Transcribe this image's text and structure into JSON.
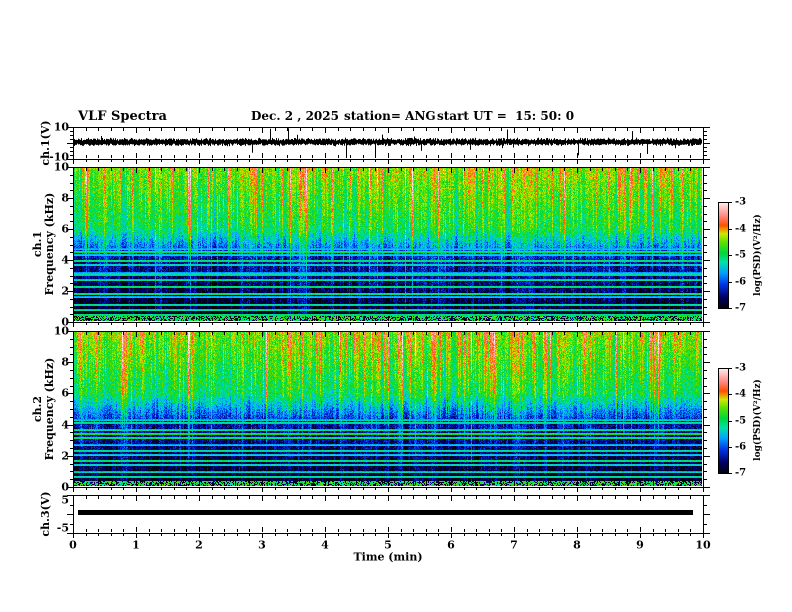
{
  "title": {
    "main": "VLF Spectra",
    "date": "Dec. 2 , 2025",
    "station": "station= ANG",
    "start_ut": "start UT =  15: 50: 0"
  },
  "left_labels": {
    "ch1_wave": "ch.1(V)",
    "spec1_line1": "ch.1",
    "spec1_line2": "Frequency (kHz)",
    "spec2_line1": "ch.2",
    "spec2_line2": "Frequency (kHz)",
    "ch3": "ch.3(V)"
  },
  "axes": {
    "ch1_wave_yticks": [
      "10",
      "-10"
    ],
    "freq_yticks": [
      "10",
      "8",
      "6",
      "4",
      "2",
      "0"
    ],
    "ch3_yticks": [
      "5",
      "-5"
    ],
    "x_ticks": [
      "0",
      "1",
      "2",
      "3",
      "4",
      "5",
      "6",
      "7",
      "8",
      "9",
      "10"
    ],
    "x_label": "Time (min)"
  },
  "colorbar": {
    "label": "log(PSD)(V²/Hz)",
    "ticks": [
      "-3",
      "-4",
      "-5",
      "-6",
      "-7"
    ]
  },
  "colors": {
    "background": "#ffffff",
    "axis": "#000000",
    "trace": "#000000",
    "colormap_stops": [
      [
        0.0,
        "#02020c"
      ],
      [
        0.1,
        "#000064"
      ],
      [
        0.22,
        "#0032e6"
      ],
      [
        0.33,
        "#00a0ff"
      ],
      [
        0.43,
        "#00e1aa"
      ],
      [
        0.52,
        "#00d73c"
      ],
      [
        0.62,
        "#5ae100"
      ],
      [
        0.7,
        "#d2e600"
      ],
      [
        0.78,
        "#ff5000"
      ],
      [
        0.86,
        "#ff8278"
      ],
      [
        1.0,
        "#fff0f0"
      ]
    ]
  },
  "chart_data": [
    {
      "type": "line",
      "name": "ch.1 time series",
      "ylabel": "ch.1(V)",
      "ylim": [
        -10,
        10
      ],
      "xlabel": "Time (min)",
      "xlim": [
        0,
        10
      ],
      "description": "dense zero-mean noise of roughly ±2 V with intermittent impulsive spikes reaching toward ±10 V across the full 10 minutes"
    },
    {
      "type": "heatmap",
      "name": "ch.1 spectrogram",
      "ylabel": "Frequency (kHz)",
      "ylim": [
        0,
        10
      ],
      "xlim": [
        0,
        10
      ],
      "value_label": "log(PSD)(V²/Hz)",
      "value_range": [
        -7,
        -3
      ],
      "profile": "high PSD (green/yellow, about -4) above 6 kHz with red sferic streaks; mixed blue (about -5.5) between 4 and 6 kHz; dark (about -6.8) below 4 kHz with narrowband interference lines; bright band at 0 kHz",
      "horizontal_lines_khz": [
        4.7,
        4.45,
        4.3,
        3.85,
        3.6,
        3.1,
        2.95,
        2.6,
        2.2,
        1.7,
        1.5,
        1.0,
        0.65,
        0.35
      ],
      "vertical_streaks": "frequent green/cyan sferic columns at random times, occasional strong orange-red columns"
    },
    {
      "type": "heatmap",
      "name": "ch.2 spectrogram",
      "ylabel": "Frequency (kHz)",
      "ylim": [
        0,
        10
      ],
      "xlim": [
        0,
        10
      ],
      "value_label": "log(PSD)(V²/Hz)",
      "value_range": [
        -7,
        -3
      ],
      "profile": "same structure as ch.1: bright green/yellow above 6 kHz, blue 4-6 kHz, dark below 4 kHz with narrowband lines and green blips along 0 kHz",
      "horizontal_lines_khz": [
        4.25,
        4.05,
        3.6,
        3.35,
        3.1,
        2.6,
        2.25,
        1.95,
        1.6,
        1.3,
        0.85,
        0.5
      ],
      "vertical_streaks": "frequent green/cyan sferic columns, occasional strong orange-red columns"
    },
    {
      "type": "line",
      "name": "ch.3 time series",
      "ylabel": "ch.3(V)",
      "ylim": [
        -5,
        5
      ],
      "xlim": [
        0,
        10
      ],
      "values": "constant 0",
      "description": "flat thick line at approximately 0 V for the whole record"
    }
  ]
}
